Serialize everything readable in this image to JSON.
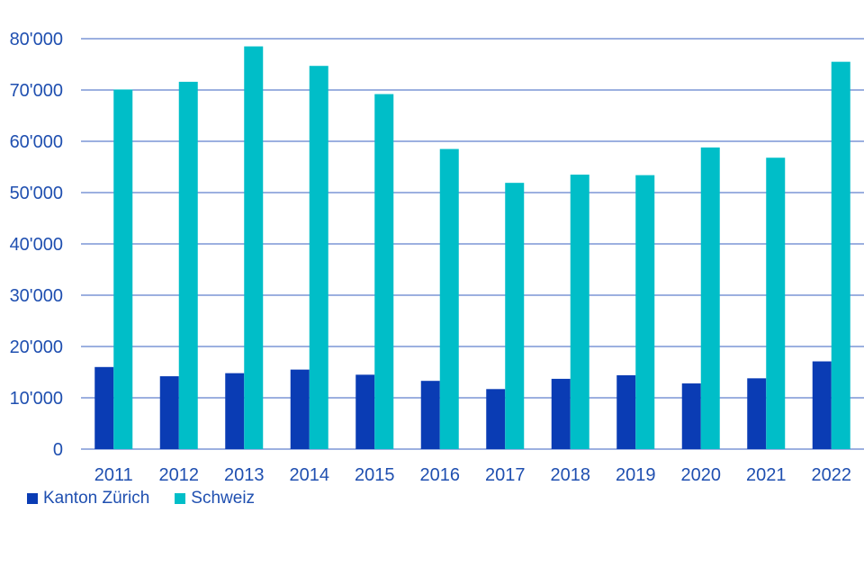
{
  "chart_data": {
    "type": "bar",
    "title": "",
    "xlabel": "",
    "ylabel": "",
    "categories": [
      "2011",
      "2012",
      "2013",
      "2014",
      "2015",
      "2016",
      "2017",
      "2018",
      "2019",
      "2020",
      "2021",
      "2022"
    ],
    "series": [
      {
        "name": "Kanton Zürich",
        "color": "#0a3cb4",
        "values": [
          16000,
          14200,
          14800,
          15500,
          14500,
          13300,
          11700,
          13700,
          14400,
          12800,
          13800,
          17100
        ]
      },
      {
        "name": "Schweiz",
        "color": "#00bec8",
        "values": [
          70100,
          71600,
          78500,
          74700,
          69200,
          58500,
          51900,
          53500,
          53400,
          58800,
          56800,
          75500
        ]
      }
    ],
    "ylim": [
      0,
      80000
    ],
    "yticks": [
      0,
      10000,
      20000,
      30000,
      40000,
      50000,
      60000,
      70000,
      80000
    ],
    "ytick_labels": [
      "0",
      "10'000",
      "20'000",
      "30'000",
      "40'000",
      "50'000",
      "60'000",
      "70'000",
      "80'000"
    ],
    "grid": true,
    "legend_position": "bottom-left",
    "gridline_color": "#3a62c0",
    "axis_text_color": "#1f4fb0"
  }
}
